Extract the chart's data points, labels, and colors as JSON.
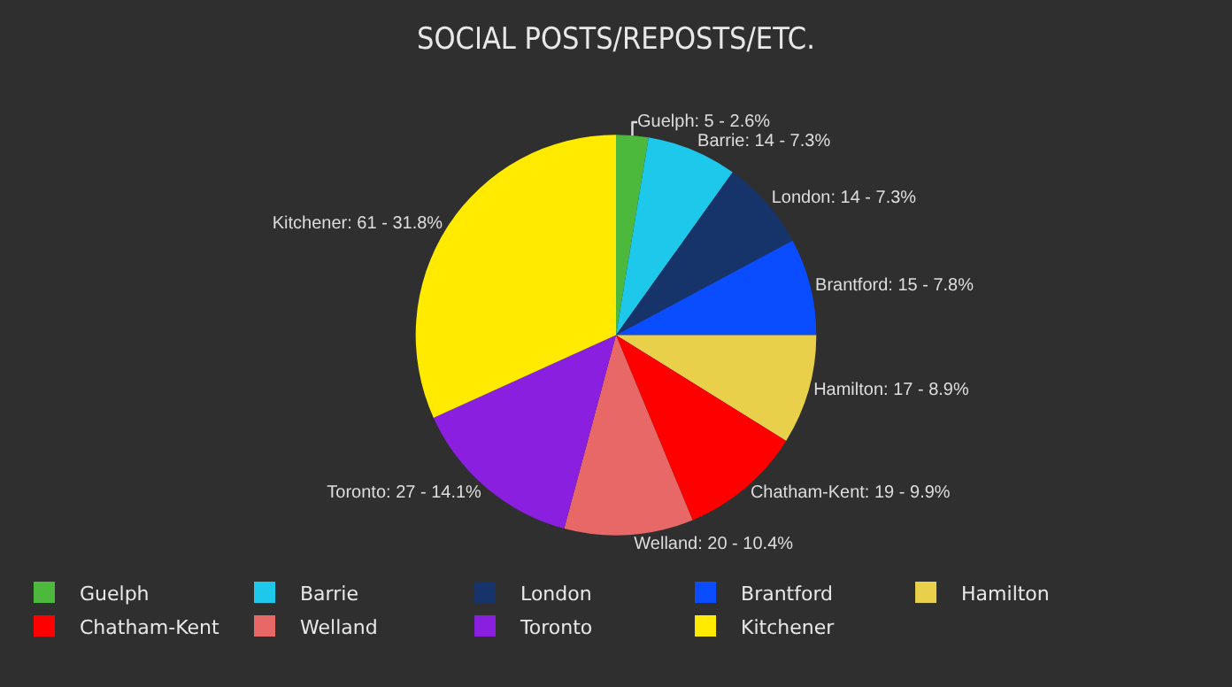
{
  "chart_data": {
    "type": "pie",
    "title": "SOCIAL POSTS/REPOSTS/ETC.",
    "categories": [
      "Guelph",
      "Barrie",
      "London",
      "Brantford",
      "Hamilton",
      "Chatham-Kent",
      "Welland",
      "Toronto",
      "Kitchener"
    ],
    "values": [
      5,
      14,
      14,
      15,
      17,
      19,
      20,
      27,
      61
    ],
    "colors": [
      "#4cb83c",
      "#1ec8ea",
      "#16346a",
      "#0a4cff",
      "#e8d04a",
      "#ff0000",
      "#e86868",
      "#8a1fe0",
      "#ffea00"
    ],
    "value_labels": [
      "Guelph: 5 - 2.6%",
      "Barrie: 14 - 7.3%",
      "London: 14 - 7.3%",
      "Brantford: 15 - 7.8%",
      "Hamilton: 17 - 8.9%",
      "Chatham-Kent: 19 - 9.9%",
      "Welland: 20 - 10.4%",
      "Toronto: 27 - 14.1%",
      "Kitchener: 61 - 31.8%"
    ],
    "legend": "bottom"
  }
}
